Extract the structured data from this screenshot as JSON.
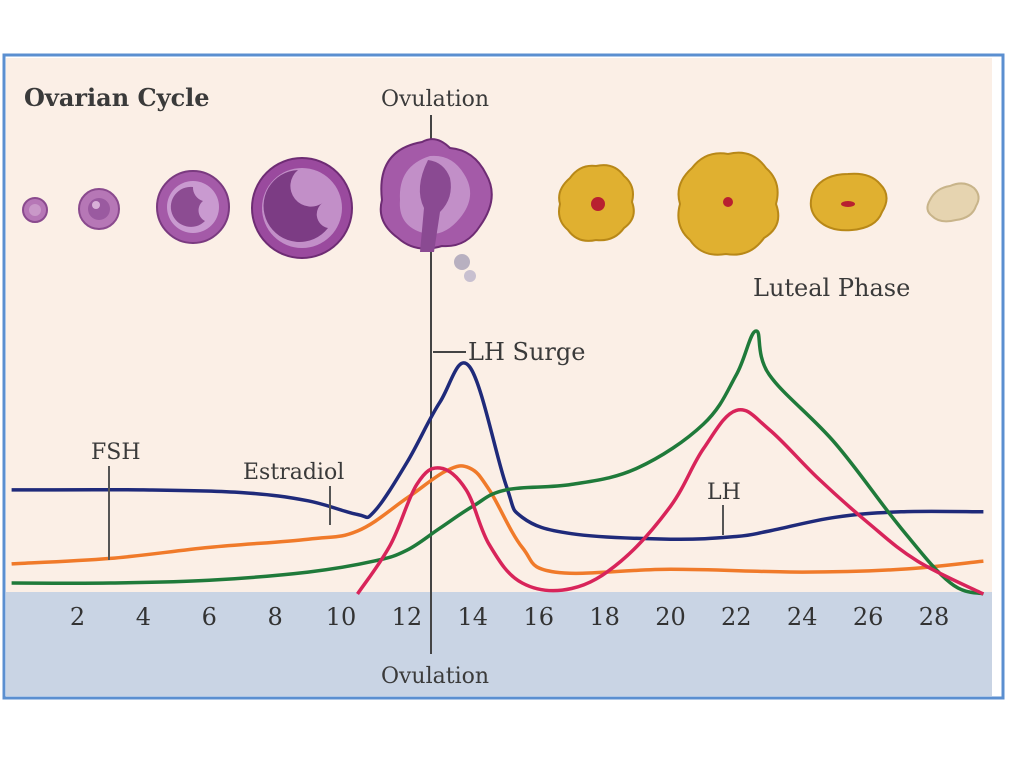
{
  "title": "Ovarian Cycle",
  "labels": {
    "ovulation_top": "Ovulation",
    "ovulation_bottom": "Ovulation",
    "lh_surge": "LH Surge",
    "luteal_phase": "Luteal Phase",
    "fsh": "FSH",
    "estradiol": "Estradiol",
    "lh": "LH"
  },
  "colors": {
    "background": "#fbefe6",
    "axis_band": "#c9d4e4",
    "border": "#5b8fd0",
    "lh_curve": "#1f2a7a",
    "estradiol_curve": "#f07a2a",
    "progesterone_curve": "#1f7a3a",
    "pink_curve": "#d8245a",
    "follicle": "#a45aa8",
    "corpus_luteum": "#e0b030",
    "corpus_albicans": "#e6d4b0"
  },
  "chart_data": {
    "type": "line",
    "title": "Ovarian Cycle",
    "xlabel": "",
    "ylabel": "",
    "x_ticks": [
      2,
      4,
      6,
      8,
      10,
      12,
      14,
      16,
      18,
      20,
      22,
      24,
      26,
      28
    ],
    "xlim": [
      0,
      29.5
    ],
    "ylim": [
      0,
      100
    ],
    "series": [
      {
        "name": "LH",
        "color": "#1f2a7a",
        "x": [
          0,
          4,
          7,
          9,
          10.5,
          11,
          12,
          13,
          13.9,
          15,
          15.5,
          17,
          20,
          22,
          23,
          25,
          27,
          29.5
        ],
        "y": [
          38,
          38,
          37,
          34,
          29,
          30,
          48,
          70,
          83,
          40,
          28,
          22,
          20,
          21,
          23,
          28,
          30,
          30
        ]
      },
      {
        "name": "Estradiol",
        "color": "#f07a2a",
        "x": [
          0,
          3,
          6,
          9,
          10.5,
          12,
          13.2,
          13.9,
          14.5,
          15.5,
          16.5,
          20,
          24,
          27,
          29.5
        ],
        "y": [
          11,
          13,
          17,
          20,
          23,
          35,
          45,
          46,
          38,
          17,
          8,
          9,
          8,
          9,
          12
        ]
      },
      {
        "name": "",
        "color": "#1f7a3a",
        "x": [
          0,
          3,
          6,
          9,
          11,
          12,
          13,
          14,
          15,
          17,
          19,
          21,
          22,
          22.6,
          23,
          25,
          27,
          28.5,
          29.5
        ],
        "y": [
          4,
          4,
          5,
          8,
          12,
          16,
          24,
          32,
          38,
          40,
          46,
          62,
          80,
          96,
          80,
          55,
          24,
          4,
          0
        ]
      },
      {
        "name": "",
        "color": "#d8245a",
        "x": [
          10.5,
          11.5,
          12.3,
          13,
          13.8,
          14.5,
          15.5,
          17,
          18.5,
          20,
          21,
          22,
          23,
          24.5,
          26,
          27.5,
          29.5
        ],
        "y": [
          0,
          18,
          40,
          46,
          38,
          18,
          4,
          2,
          12,
          32,
          53,
          67,
          60,
          42,
          26,
          12,
          0
        ]
      }
    ],
    "annotations": [
      "LH Surge",
      "Luteal Phase",
      "FSH",
      "Estradiol",
      "LH",
      "Ovulation"
    ]
  }
}
